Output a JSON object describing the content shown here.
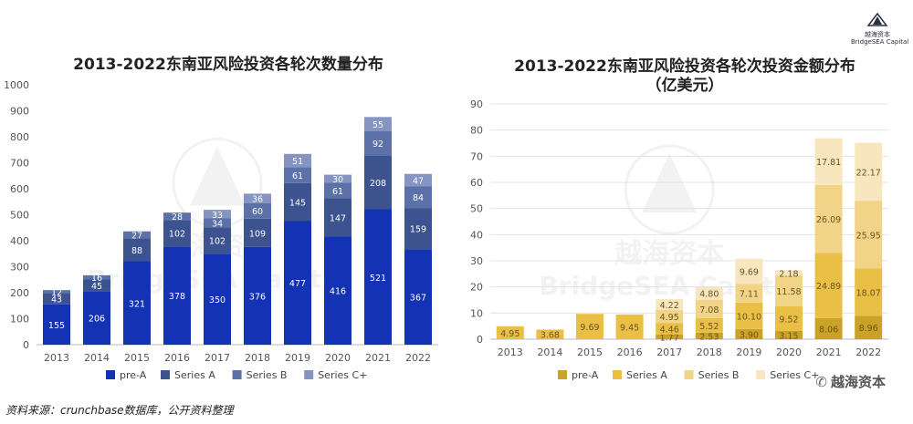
{
  "logo": {
    "name": "越海资本",
    "subtext": "BridgeSEA Capital"
  },
  "watermark": {
    "cn": "越海资本",
    "en": "BridgeSEA Capital"
  },
  "source_note": "资料来源：crunchbase数据库，公开资料整理",
  "wechat_mark": "越海资本",
  "chart_data": [
    {
      "type": "bar",
      "stacked": true,
      "title": "2013-2022东南亚风险投资各轮次数量分布",
      "categories": [
        "2013",
        "2014",
        "2015",
        "2016",
        "2017",
        "2018",
        "2019",
        "2020",
        "2021",
        "2022"
      ],
      "ylim": [
        0,
        1000
      ],
      "yticks": [
        0,
        100,
        200,
        300,
        400,
        500,
        600,
        700,
        800,
        900,
        1000
      ],
      "grid": false,
      "legend": "bottom",
      "series": [
        {
          "name": "pre-A",
          "color": "#1432b4",
          "values": [
            155,
            206,
            321,
            378,
            350,
            376,
            477,
            416,
            521,
            367
          ]
        },
        {
          "name": "Series A",
          "color": "#3d5390",
          "values": [
            43,
            45,
            88,
            102,
            102,
            109,
            145,
            147,
            208,
            159
          ]
        },
        {
          "name": "Series B",
          "color": "#5c71a8",
          "values": [
            12,
            16,
            27,
            28,
            34,
            60,
            61,
            61,
            92,
            84
          ]
        },
        {
          "name": "Series C+",
          "color": "#8594c0",
          "values": [
            null,
            null,
            null,
            null,
            33,
            36,
            51,
            30,
            55,
            47
          ]
        }
      ]
    },
    {
      "type": "bar",
      "stacked": true,
      "title_lines": [
        "2013-2022东南亚风险投资各轮次投资金额分布",
        "（亿美元）"
      ],
      "categories": [
        "2013",
        "2014",
        "2015",
        "2016",
        "2017",
        "2018",
        "2019",
        "2020",
        "2021",
        "2022"
      ],
      "ylim": [
        0,
        90
      ],
      "yticks": [
        0,
        10,
        20,
        30,
        40,
        50,
        60,
        70,
        80,
        90
      ],
      "grid": true,
      "legend": "bottom",
      "series": [
        {
          "name": "pre-A",
          "color": "#c9a227",
          "values": [
            null,
            null,
            null,
            null,
            1.77,
            2.53,
            3.9,
            3.15,
            8.06,
            8.96
          ]
        },
        {
          "name": "Series A",
          "color": "#e9bf45",
          "values": [
            4.95,
            3.68,
            9.69,
            9.45,
            4.46,
            5.52,
            10.1,
            9.52,
            24.89,
            18.07
          ]
        },
        {
          "name": "Series B",
          "color": "#f2d488",
          "values": [
            null,
            null,
            null,
            null,
            4.95,
            7.08,
            7.11,
            11.58,
            26.09,
            25.95
          ]
        },
        {
          "name": "Series C+",
          "color": "#f8e6be",
          "values": [
            null,
            null,
            null,
            null,
            4.22,
            4.8,
            9.69,
            2.18,
            17.81,
            22.17
          ]
        }
      ]
    }
  ]
}
